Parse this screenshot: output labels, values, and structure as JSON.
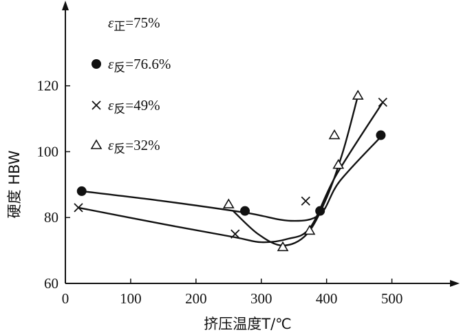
{
  "chart_data": {
    "type": "scatter",
    "title": "",
    "xlabel": "挤压温度T/℃",
    "ylabel": "硬度 HBW",
    "xlim": [
      0,
      590
    ],
    "ylim": [
      60,
      145
    ],
    "x_ticks": [
      0,
      100,
      200,
      300,
      400,
      500
    ],
    "y_ticks": [
      60,
      80,
      100,
      120
    ],
    "grid": false,
    "legend_position": "upper-left",
    "series": [
      {
        "name": "ε正=75%",
        "marker": "none",
        "points": [],
        "curve": []
      },
      {
        "name": "ε反=76.6%",
        "marker": "filled-circle",
        "points": [
          [
            25,
            88
          ],
          [
            275,
            82
          ],
          [
            390,
            82
          ],
          [
            483,
            105
          ]
        ],
        "curve": [
          [
            25,
            88
          ],
          [
            150,
            85
          ],
          [
            275,
            81.5
          ],
          [
            345,
            79
          ],
          [
            390,
            81
          ],
          [
            420,
            91
          ],
          [
            483,
            104.5
          ]
        ]
      },
      {
        "name": "ε反=49%",
        "marker": "cross",
        "points": [
          [
            20,
            83
          ],
          [
            260,
            75
          ],
          [
            368,
            85
          ],
          [
            486,
            115
          ]
        ],
        "curve": [
          [
            20,
            83
          ],
          [
            150,
            78
          ],
          [
            260,
            74
          ],
          [
            300,
            72.5
          ],
          [
            340,
            73.5
          ],
          [
            375,
            77
          ],
          [
            415,
            93
          ],
          [
            486,
            115
          ]
        ]
      },
      {
        "name": "ε反=32%",
        "marker": "open-triangle",
        "points": [
          [
            250,
            84
          ],
          [
            333,
            71
          ],
          [
            374,
            76
          ],
          [
            412,
            105
          ],
          [
            418,
            96
          ],
          [
            448,
            117
          ]
        ],
        "curve": [
          [
            257,
            82
          ],
          [
            295,
            75
          ],
          [
            333,
            71.5
          ],
          [
            370,
            75
          ],
          [
            400,
            86
          ],
          [
            425,
            100
          ],
          [
            448,
            117
          ]
        ]
      }
    ],
    "legend": {
      "entries": [
        {
          "symbol": "ε",
          "sub": "正",
          "value": "=75%",
          "marker": "none"
        },
        {
          "symbol": "ε",
          "sub": "反",
          "value": "=76.6%",
          "marker": "filled-circle"
        },
        {
          "symbol": "ε",
          "sub": "反",
          "value": "=49%",
          "marker": "cross"
        },
        {
          "symbol": "ε",
          "sub": "反",
          "value": "=32%",
          "marker": "open-triangle"
        }
      ]
    },
    "colors": {
      "ink": "#111111",
      "background": "#ffffff"
    }
  }
}
